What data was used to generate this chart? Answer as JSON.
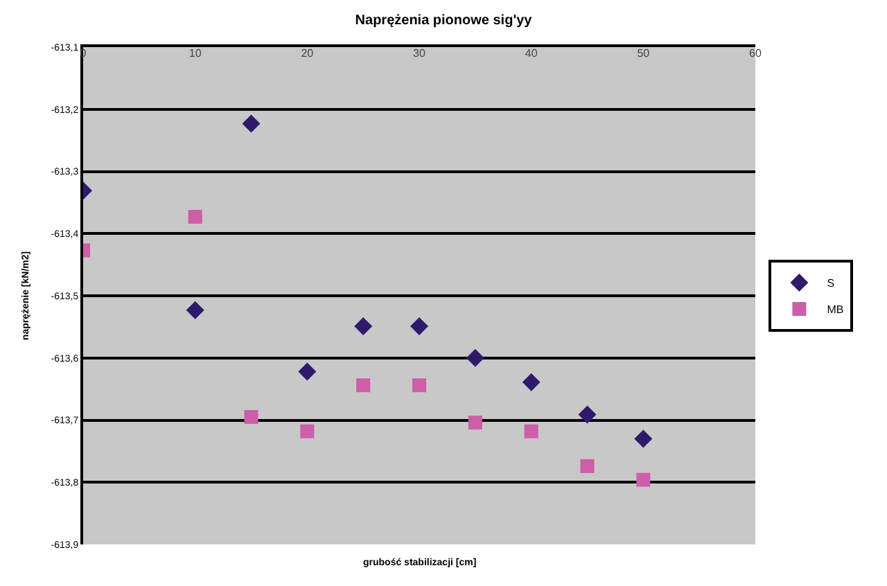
{
  "chart_data": {
    "type": "scatter",
    "title": "Naprężenia pionowe sig'yy",
    "xlabel": "grubość stabilizacji [cm]",
    "ylabel": "naprężenie [kN/m2]",
    "x": [
      0,
      10,
      15,
      20,
      25,
      30,
      35,
      40,
      45,
      50
    ],
    "series": [
      {
        "name": "S",
        "color": "#30196b",
        "marker": "diamond",
        "values": [
          -613.331,
          -613.523,
          -613.223,
          -613.622,
          -613.549,
          -613.549,
          -613.6,
          -613.639,
          -613.691,
          -613.73
        ]
      },
      {
        "name": "MB",
        "color": "#cc5fa8",
        "marker": "square",
        "values": [
          -613.427,
          -613.373,
          -613.695,
          -613.718,
          -613.644,
          -613.644,
          -613.704,
          -613.718,
          -613.774,
          -613.796
        ]
      }
    ],
    "xlim": [
      0,
      60
    ],
    "xticks": [
      0,
      10,
      20,
      30,
      40,
      50,
      60
    ],
    "ylim": [
      -613.9,
      -613.1
    ],
    "yticks": [
      {
        "value": -613.1,
        "label": "-613,1"
      },
      {
        "value": -613.2,
        "label": "-613,2"
      },
      {
        "value": -613.3,
        "label": "-613,3"
      },
      {
        "value": -613.4,
        "label": "-613,4"
      },
      {
        "value": -613.5,
        "label": "-613,5"
      },
      {
        "value": -613.6,
        "label": "-613,6"
      },
      {
        "value": -613.7,
        "label": "-613,7"
      },
      {
        "value": -613.8,
        "label": "-613,8"
      },
      {
        "value": -613.9,
        "label": "-613,9"
      }
    ],
    "grid": "y",
    "legend": "right"
  }
}
